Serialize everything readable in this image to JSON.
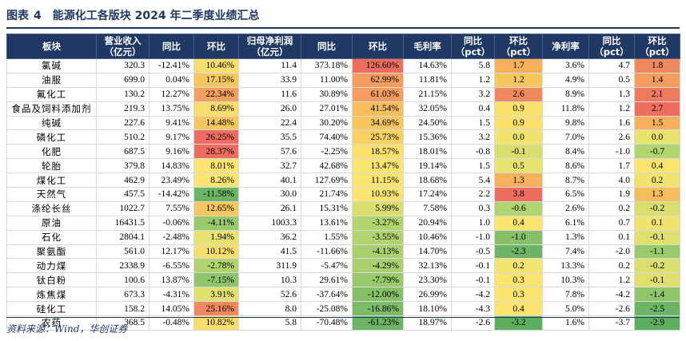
{
  "title": {
    "label": "图表",
    "number": "4",
    "text": "能源化工各版块 2024 年二季度业绩汇总"
  },
  "table": {
    "headers": [
      [
        "板块"
      ],
      [
        "营业收入",
        "（亿元）"
      ],
      [
        "同比"
      ],
      [
        "环比"
      ],
      [
        "归母净利润",
        "（亿元）"
      ],
      [
        "同比"
      ],
      [
        "环比"
      ],
      [
        "毛利率"
      ],
      [
        "同比",
        "（pct）"
      ],
      [
        "环比",
        "（pct）"
      ],
      [
        "净利率"
      ],
      [
        "同比",
        "（pct）"
      ],
      [
        "环比",
        "（pct）"
      ]
    ],
    "rows": [
      {
        "name": "氯碱",
        "revenue": "320.3",
        "rev_yoy": "-12.41%",
        "rev_qoq": "10.46%",
        "profit": "11.4",
        "pro_yoy": "373.18%",
        "pro_qoq": "126.60%",
        "gm": "14.63%",
        "gm_yoy": "5.8",
        "gm_qoq": "1.7",
        "nm": "3.6%",
        "nm_yoy": "4.7",
        "nm_qoq": "1.8"
      },
      {
        "name": "油服",
        "revenue": "699.0",
        "rev_yoy": "0.04%",
        "rev_qoq": "17.15%",
        "profit": "33.9",
        "pro_yoy": "11.00%",
        "pro_qoq": "62.99%",
        "gm": "11.81%",
        "gm_yoy": "1.2",
        "gm_qoq": "1.2",
        "nm": "4.9%",
        "nm_yoy": "0.5",
        "nm_qoq": "1.4"
      },
      {
        "name": "氟化工",
        "revenue": "130.2",
        "rev_yoy": "12.27%",
        "rev_qoq": "22.34%",
        "profit": "11.6",
        "pro_yoy": "30.89%",
        "pro_qoq": "61.03%",
        "gm": "21.15%",
        "gm_yoy": "3.2",
        "gm_qoq": "2.6",
        "nm": "8.9%",
        "nm_yoy": "1.3",
        "nm_qoq": "2.1"
      },
      {
        "name": "食品及饲料添加剂",
        "revenue": "219.3",
        "rev_yoy": "13.75%",
        "rev_qoq": "8.69%",
        "profit": "26.0",
        "pro_yoy": "27.01%",
        "pro_qoq": "41.54%",
        "gm": "32.05%",
        "gm_yoy": "0.4",
        "gm_qoq": "0.9",
        "nm": "11.8%",
        "nm_yoy": "1.2",
        "nm_qoq": "2.7"
      },
      {
        "name": "纯碱",
        "revenue": "227.6",
        "rev_yoy": "9.41%",
        "rev_qoq": "14.48%",
        "profit": "22.4",
        "pro_yoy": "30.20%",
        "pro_qoq": "34.69%",
        "gm": "24.50%",
        "gm_yoy": "1.5",
        "gm_qoq": "0.9",
        "nm": "9.8%",
        "nm_yoy": "1.6",
        "nm_qoq": "1.5"
      },
      {
        "name": "磷化工",
        "revenue": "510.2",
        "rev_yoy": "9.17%",
        "rev_qoq": "26.25%",
        "profit": "35.5",
        "pro_yoy": "74.40%",
        "pro_qoq": "25.73%",
        "gm": "15.36%",
        "gm_yoy": "3.2",
        "gm_qoq": "0.0",
        "nm": "7.0%",
        "nm_yoy": "2.6",
        "nm_qoq": "0.0"
      },
      {
        "name": "化肥",
        "revenue": "687.5",
        "rev_yoy": "9.16%",
        "rev_qoq": "28.37%",
        "profit": "57.6",
        "pro_yoy": "-2.25%",
        "pro_qoq": "18.57%",
        "gm": "18.01%",
        "gm_yoy": "-0.8",
        "gm_qoq": "-0.1",
        "nm": "8.4%",
        "nm_yoy": "-1.0",
        "nm_qoq": "-0.7"
      },
      {
        "name": "轮胎",
        "revenue": "379.8",
        "rev_yoy": "14.83%",
        "rev_qoq": "8.01%",
        "profit": "32.7",
        "pro_yoy": "42.68%",
        "pro_qoq": "13.47%",
        "gm": "19.14%",
        "gm_yoy": "1.5",
        "gm_qoq": "0.5",
        "nm": "8.6%",
        "nm_yoy": "1.7",
        "nm_qoq": "0.4"
      },
      {
        "name": "煤化工",
        "revenue": "462.9",
        "rev_yoy": "23.49%",
        "rev_qoq": "8.26%",
        "profit": "40.1",
        "pro_yoy": "127.69%",
        "pro_qoq": "11.15%",
        "gm": "18.68%",
        "gm_yoy": "5.4",
        "gm_qoq": "1.3",
        "nm": "8.7%",
        "nm_yoy": "4.0",
        "nm_qoq": "0.2"
      },
      {
        "name": "天然气",
        "revenue": "457.5",
        "rev_yoy": "-14.42%",
        "rev_qoq": "-11.58%",
        "profit": "30.0",
        "pro_yoy": "21.74%",
        "pro_qoq": "10.93%",
        "gm": "17.24%",
        "gm_yoy": "2.2",
        "gm_qoq": "3.8",
        "nm": "6.5%",
        "nm_yoy": "1.9",
        "nm_qoq": "1.3"
      },
      {
        "name": "涤纶长丝",
        "revenue": "1022.7",
        "rev_yoy": "7.55%",
        "rev_qoq": "12.65%",
        "profit": "26.1",
        "pro_yoy": "15.31%",
        "pro_qoq": "5.99%",
        "gm": "7.58%",
        "gm_yoy": "0.3",
        "gm_qoq": "-0.6",
        "nm": "2.6%",
        "nm_yoy": "0.2",
        "nm_qoq": "-0.2"
      },
      {
        "name": "原油",
        "revenue": "16431.5",
        "rev_yoy": "-0.06%",
        "rev_qoq": "-4.11%",
        "profit": "1003.3",
        "pro_yoy": "13.61%",
        "pro_qoq": "-3.27%",
        "gm": "20.94%",
        "gm_yoy": "1.0",
        "gm_qoq": "0.4",
        "nm": "6.1%",
        "nm_yoy": "0.7",
        "nm_qoq": "0.1"
      },
      {
        "name": "石化",
        "revenue": "2804.1",
        "rev_yoy": "-2.48%",
        "rev_qoq": "1.94%",
        "profit": "36.2",
        "pro_yoy": "1.55%",
        "pro_qoq": "-3.55%",
        "gm": "10.46%",
        "gm_yoy": "-1.0",
        "gm_qoq": "-1.0",
        "nm": "1.3%",
        "nm_yoy": "0.1",
        "nm_qoq": "-0.1"
      },
      {
        "name": "聚氨酯",
        "revenue": "561.0",
        "rev_yoy": "12.17%",
        "rev_qoq": "10.12%",
        "profit": "41.5",
        "pro_yoy": "-11.66%",
        "pro_qoq": "-4.13%",
        "gm": "14.70%",
        "gm_yoy": "-0.5",
        "gm_qoq": "-2.3",
        "nm": "7.4%",
        "nm_yoy": "-2.0",
        "nm_qoq": "-1.1"
      },
      {
        "name": "动力煤",
        "revenue": "2338.9",
        "rev_yoy": "-6.55%",
        "rev_qoq": "-2.78%",
        "profit": "311.9",
        "pro_yoy": "-5.47%",
        "pro_qoq": "-4.29%",
        "gm": "32.13%",
        "gm_yoy": "-0.1",
        "gm_qoq": "0.2",
        "nm": "13.3%",
        "nm_yoy": "0.2",
        "nm_qoq": "-0.2"
      },
      {
        "name": "钛白粉",
        "revenue": "100.6",
        "rev_yoy": "13.87%",
        "rev_qoq": "-7.15%",
        "profit": "10.3",
        "pro_yoy": "29.61%",
        "pro_qoq": "-7.79%",
        "gm": "23.30%",
        "gm_yoy": "-0.1",
        "gm_qoq": "0.3",
        "nm": "10.3%",
        "nm_yoy": "1.2",
        "nm_qoq": "-0.1"
      },
      {
        "name": "炼焦煤",
        "revenue": "673.3",
        "rev_yoy": "-4.31%",
        "rev_qoq": "3.91%",
        "profit": "52.6",
        "pro_yoy": "-37.64%",
        "pro_qoq": "-12.00%",
        "gm": "26.99%",
        "gm_yoy": "-4.2",
        "gm_qoq": "0.3",
        "nm": "7.8%",
        "nm_yoy": "-4.2",
        "nm_qoq": "-1.4"
      },
      {
        "name": "硅化工",
        "revenue": "158.2",
        "rev_yoy": "14.05%",
        "rev_qoq": "25.16%",
        "profit": "8.0",
        "pro_yoy": "-25.08%",
        "pro_qoq": "-16.86%",
        "gm": "18.10%",
        "gm_yoy": "-4.3",
        "gm_qoq": "0.4",
        "nm": "5.0%",
        "nm_yoy": "-2.6",
        "nm_qoq": "-2.5"
      },
      {
        "name": "农药",
        "revenue": "368.5",
        "rev_yoy": "-0.48%",
        "rev_qoq": "10.82%",
        "profit": "5.8",
        "pro_yoy": "-70.48%",
        "pro_qoq": "-61.23%",
        "gm": "18.97%",
        "gm_yoy": "-2.6",
        "gm_qoq": "-3.2",
        "nm": "1.6%",
        "nm_yoy": "-3.7",
        "nm_qoq": "-2.9"
      }
    ]
  },
  "heat": {
    "rev_qoq": [
      "#f8df6d",
      "#f6c75c",
      "#f2a05d",
      "#f8df6d",
      "#f6c75c",
      "#ee6d5e",
      "#ee6d5e",
      "#fbe470",
      "#fbe470",
      "#6bb564",
      "#f6c75c",
      "#98c96b",
      "#e8e26f",
      "#f8df6d",
      "#b2d46f",
      "#8fc56a",
      "#e0e06f",
      "#f08a5e",
      "#f8df6d"
    ],
    "pro_qoq": [
      "#ee6d5e",
      "#f49d5d",
      "#f49d5d",
      "#f6bd5c",
      "#f6c75c",
      "#f8d162",
      "#fbe06b",
      "#fbe470",
      "#fbe470",
      "#fbe470",
      "#d9de6f",
      "#b2d46f",
      "#b2d46f",
      "#a9d06e",
      "#a9d06e",
      "#98c96b",
      "#86c067",
      "#7cbc66",
      "#6bb564"
    ],
    "gm_qoq": [
      "#f6b05c",
      "#f6c75c",
      "#f08a5e",
      "#fbe06b",
      "#fbe06b",
      "#f0e470",
      "#d9de6f",
      "#e8e26f",
      "#f6b05c",
      "#ee6d5e",
      "#b2d46f",
      "#fbe470",
      "#86c067",
      "#6bb564",
      "#f2e671",
      "#fbe470",
      "#fbe470",
      "#fbe470",
      "#5eae5f"
    ],
    "nm_qoq": [
      "#f08a5e",
      "#f49d5d",
      "#ee7a5e",
      "#ee6d5e",
      "#f6b05c",
      "#e8e26f",
      "#b2d46f",
      "#fbe470",
      "#f0e470",
      "#f6bd5c",
      "#d9de6f",
      "#f0e470",
      "#e0e06f",
      "#98c96b",
      "#d9de6f",
      "#e0e06f",
      "#8fc56a",
      "#6bb564",
      "#5eae5f"
    ]
  },
  "source": "资料来源：Wind，华创证券"
}
